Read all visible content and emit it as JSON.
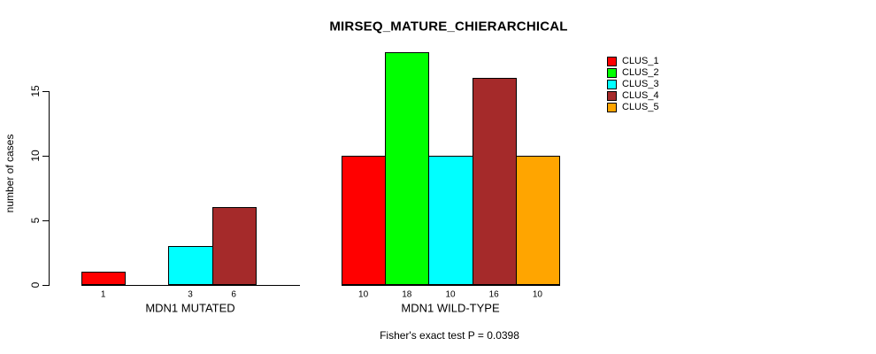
{
  "chart_data": {
    "type": "bar",
    "title": "MIRSEQ_MATURE_CHIERARCHICAL",
    "ylabel": "number of cases",
    "footer": "Fisher's exact test P = 0.0398",
    "y_axis": {
      "ticks": [
        0,
        5,
        10,
        15
      ],
      "ylim": [
        0,
        18.6
      ],
      "tick_labels_rotated": true
    },
    "grid": false,
    "legend_position": "top-right",
    "series": [
      {
        "name": "CLUS_1",
        "color": "#FF0000"
      },
      {
        "name": "CLUS_2",
        "color": "#00FF00"
      },
      {
        "name": "CLUS_3",
        "color": "#00FFFF"
      },
      {
        "name": "CLUS_4",
        "color": "#A52A2A"
      },
      {
        "name": "CLUS_5",
        "color": "#FFA500"
      }
    ],
    "groups": [
      {
        "label": "MDN1 MUTATED",
        "values": [
          1,
          0,
          3,
          6,
          0
        ],
        "bar_labels": [
          "1",
          "3",
          "6"
        ]
      },
      {
        "label": "MDN1 WILD-TYPE",
        "values": [
          10,
          18,
          10,
          16,
          10
        ],
        "bar_labels": [
          "10",
          "18",
          "10",
          "16",
          "10"
        ]
      }
    ]
  }
}
